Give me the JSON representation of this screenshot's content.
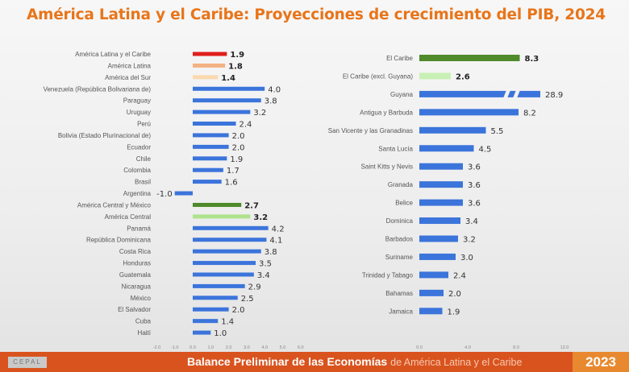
{
  "title": "América Latina y el Caribe: Proyecciones de crecimiento del PIB, 2024",
  "footer": {
    "logo": "CEPAL",
    "text_bold": "Balance Preliminar de las Economías",
    "text_light": "de América Latina y el Caribe",
    "year": "2023"
  },
  "colors": {
    "red": "#e0201c",
    "orange": "#f4b183",
    "peach": "#fbd9b0",
    "blue": "#3b74db",
    "green": "#4f8a2b",
    "lightgreen": "#c9f0b4",
    "midgreen": "#aee38d"
  },
  "chart_data": [
    {
      "type": "bar",
      "orientation": "horizontal",
      "xlim": [
        -2.0,
        6.0
      ],
      "xticks": [
        "-2.0",
        "-1.0",
        "0.0",
        "1.0",
        "2.0",
        "3.0",
        "4.0",
        "5.0",
        "6.0"
      ],
      "categories": [
        "América Latina y el Caribe",
        "América Latina",
        "América del Sur",
        "Venezuela (República Bolivariana de)",
        "Paraguay",
        "Uruguay",
        "Perú",
        "Bolivia (Estado Plurinacional de)",
        "Ecuador",
        "Chile",
        "Colombia",
        "Brasil",
        "Argentina",
        "América Central y México",
        "América Central",
        "Panamá",
        "República Dominicana",
        "Costa Rica",
        "Honduras",
        "Guatemala",
        "Nicaragua",
        "México",
        "El Salvador",
        "Cuba",
        "Haití"
      ],
      "values": [
        1.9,
        1.8,
        1.4,
        4.0,
        3.8,
        3.2,
        2.4,
        2.0,
        2.0,
        1.9,
        1.7,
        1.6,
        -1.0,
        2.7,
        3.2,
        4.2,
        4.1,
        3.8,
        3.5,
        3.4,
        2.9,
        2.5,
        2.0,
        1.4,
        1.0
      ],
      "bar_colors": [
        "red",
        "orange",
        "peach",
        "blue",
        "blue",
        "blue",
        "blue",
        "blue",
        "blue",
        "blue",
        "blue",
        "blue",
        "blue",
        "green",
        "midgreen",
        "blue",
        "blue",
        "blue",
        "blue",
        "blue",
        "blue",
        "blue",
        "blue",
        "blue",
        "blue"
      ],
      "bold_labels": [
        true,
        true,
        true,
        false,
        false,
        false,
        false,
        false,
        false,
        false,
        false,
        false,
        false,
        true,
        true,
        false,
        false,
        false,
        false,
        false,
        false,
        false,
        false,
        false,
        false
      ]
    },
    {
      "type": "bar",
      "orientation": "horizontal",
      "xlim": [
        0.0,
        12.0
      ],
      "xticks": [
        "0.0",
        "4.0",
        "8.0",
        "12.0"
      ],
      "axis_break": "Guyana",
      "categories": [
        "El Caribe",
        "El Caribe (excl. Guyana)",
        "Guyana",
        "Antigua y Barbuda",
        "San Vicente y las Granadinas",
        "Santa Lucía",
        "Saint Kitts y Nevis",
        "Granada",
        "Belice",
        "Dominica",
        "Barbados",
        "Suriname",
        "Trinidad y Tabago",
        "Bahamas",
        "Jamaica"
      ],
      "values": [
        8.3,
        2.6,
        28.9,
        8.2,
        5.5,
        4.5,
        3.6,
        3.6,
        3.6,
        3.4,
        3.2,
        3.0,
        2.4,
        2.0,
        1.9
      ],
      "bar_colors": [
        "green",
        "lightgreen",
        "blue",
        "blue",
        "blue",
        "blue",
        "blue",
        "blue",
        "blue",
        "blue",
        "blue",
        "blue",
        "blue",
        "blue",
        "blue"
      ],
      "bold_labels": [
        true,
        true,
        false,
        false,
        false,
        false,
        false,
        false,
        false,
        false,
        false,
        false,
        false,
        false,
        false
      ]
    }
  ]
}
